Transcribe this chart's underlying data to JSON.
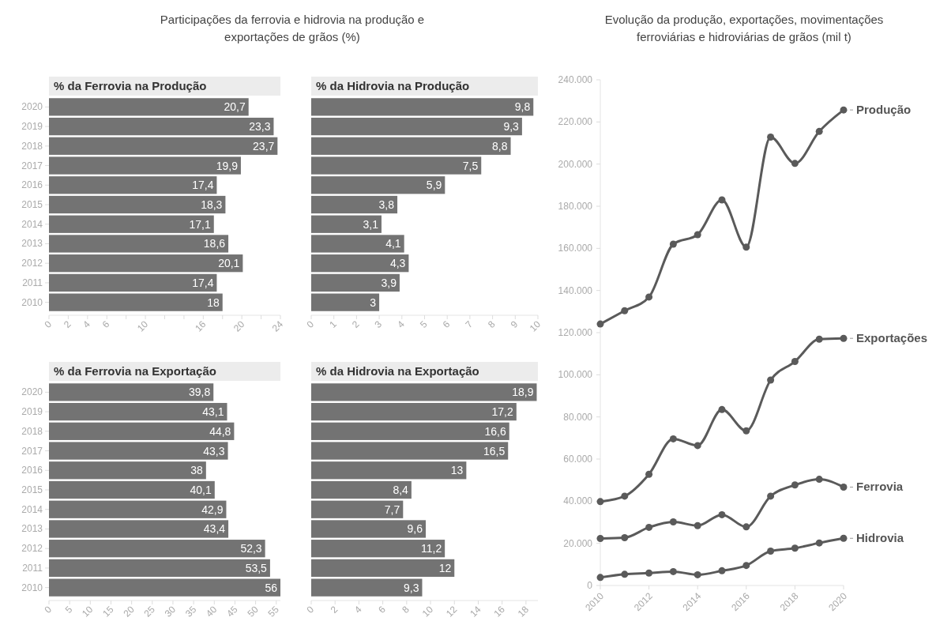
{
  "chart_data": [
    {
      "type": "bar",
      "orientation": "horizontal",
      "title": "% da Ferrovia na Produção",
      "annotations": [
        "Participações da ferrovia e hidrovia na produção e exportações de grãos (%)"
      ],
      "categories": [
        "2020",
        "2019",
        "2018",
        "2017",
        "2016",
        "2015",
        "2014",
        "2013",
        "2012",
        "2011",
        "2010"
      ],
      "values": [
        20.7,
        23.3,
        23.7,
        19.9,
        17.4,
        18.3,
        17.1,
        18.6,
        20.1,
        17.4,
        18
      ],
      "value_labels": [
        "20,7",
        "23,3",
        "23,7",
        "19,9",
        "17,4",
        "18,3",
        "17,1",
        "18,6",
        "20,1",
        "17,4",
        "18"
      ],
      "color": "#737373",
      "xlim": [
        0,
        24
      ],
      "xticks": [
        0,
        2,
        4,
        6,
        {
          "value": 8,
          "label": null
        },
        10,
        {
          "value": 12,
          "label": null
        },
        {
          "value": 14,
          "label": null
        },
        16,
        {
          "value": 18,
          "label": null
        },
        20,
        {
          "value": 22,
          "label": null
        },
        24
      ]
    },
    {
      "type": "bar",
      "orientation": "horizontal",
      "title": "% da Hidrovia na Produção",
      "categories": [
        "2020",
        "2019",
        "2018",
        "2017",
        "2016",
        "2015",
        "2014",
        "2013",
        "2012",
        "2011",
        "2010"
      ],
      "values": [
        9.8,
        9.3,
        8.8,
        7.5,
        5.9,
        3.8,
        3.1,
        4.1,
        4.3,
        3.9,
        3
      ],
      "value_labels": [
        "9,8",
        "9,3",
        "8,8",
        "7,5",
        "5,9",
        "3,8",
        "3,1",
        "4,1",
        "4,3",
        "3,9",
        "3"
      ],
      "color": "#737373",
      "tick_labels": "x",
      "xlim": [
        0,
        10
      ],
      "xticks": [
        0,
        1,
        2,
        3,
        4,
        5,
        6,
        7,
        8,
        9,
        10
      ]
    },
    {
      "type": "bar",
      "orientation": "horizontal",
      "title": "% da Ferrovia na Exportação",
      "categories": [
        "2020",
        "2019",
        "2018",
        "2017",
        "2016",
        "2015",
        "2014",
        "2013",
        "2012",
        "2011",
        "2010"
      ],
      "values": [
        39.8,
        43.1,
        44.8,
        43.3,
        38,
        40.1,
        42.9,
        43.4,
        52.3,
        53.5,
        56
      ],
      "value_labels": [
        "39,8",
        "43,1",
        "44,8",
        "43,3",
        "38",
        "40,1",
        "42,9",
        "43,4",
        "52,3",
        "53,5",
        "56"
      ],
      "color": "#737373",
      "xlim": [
        0,
        56
      ],
      "xticks": [
        0,
        5,
        10,
        15,
        20,
        25,
        30,
        35,
        40,
        45,
        50,
        55
      ]
    },
    {
      "type": "bar",
      "orientation": "horizontal",
      "title": "% da Hidrovia na Exportação",
      "categories": [
        "2020",
        "2019",
        "2018",
        "2017",
        "2016",
        "2015",
        "2014",
        "2013",
        "2012",
        "2011",
        "2010"
      ],
      "values": [
        18.9,
        17.2,
        16.6,
        16.5,
        13,
        8.4,
        7.7,
        9.6,
        11.2,
        12,
        9.3
      ],
      "value_labels": [
        "18,9",
        "17,2",
        "16,6",
        "16,5",
        "13",
        "8,4",
        "7,7",
        "9,6",
        "11,2",
        "12",
        "9,3"
      ],
      "color": "#737373",
      "tick_labels": "x",
      "xlim": [
        0,
        19
      ],
      "xticks": [
        0,
        2,
        4,
        6,
        8,
        10,
        12,
        14,
        16,
        18
      ]
    },
    {
      "type": "line",
      "title": "Evolução da produção, exportações, movimentações ferroviárias e hidroviárias de grãos (mil t)",
      "x": [
        2010,
        2011,
        2012,
        2013,
        2014,
        2015,
        2016,
        2017,
        2018,
        2019,
        2020
      ],
      "marker": "circle",
      "xlim": [
        2010,
        2020
      ],
      "xticks": [
        2010,
        2012,
        2014,
        2016,
        2018,
        2020
      ],
      "ylim": [
        0,
        240000
      ],
      "yticks": [
        0,
        {
          "value": 20000,
          "label": "20.000"
        },
        {
          "value": 40000,
          "label": "40.000"
        },
        {
          "value": 60000,
          "label": "60.000"
        },
        {
          "value": 80000,
          "label": "80.000"
        },
        {
          "value": 100000,
          "label": "100.000"
        },
        {
          "value": 120000,
          "label": "120.000"
        },
        {
          "value": 140000,
          "label": "140.000"
        },
        {
          "value": 160000,
          "label": "160.000"
        },
        {
          "value": 180000,
          "label": "180.000"
        },
        {
          "value": 200000,
          "label": "200.000"
        },
        {
          "value": 220000,
          "label": "220.000"
        },
        {
          "value": 240000,
          "label": "240.000"
        }
      ],
      "series": [
        {
          "name": "Produção",
          "color": "#5a5a5a",
          "values": [
            124100,
            130400,
            136900,
            162000,
            166500,
            183000,
            160600,
            212800,
            200300,
            215500,
            225700
          ]
        },
        {
          "name": "Exportações",
          "color": "#5a5a5a",
          "values": [
            39800,
            42400,
            52800,
            69600,
            66400,
            83500,
            73400,
            97500,
            106300,
            116900,
            117300
          ]
        },
        {
          "name": "Ferrovia",
          "color": "#5a5a5a",
          "values": [
            22300,
            22700,
            27600,
            30200,
            28400,
            33600,
            27800,
            42400,
            47700,
            50400,
            46700
          ]
        },
        {
          "name": "Hidrovia",
          "color": "#5a5a5a",
          "values": [
            3800,
            5300,
            5900,
            6600,
            5100,
            7000,
            9500,
            16300,
            17700,
            20200,
            22400
          ]
        }
      ]
    }
  ]
}
